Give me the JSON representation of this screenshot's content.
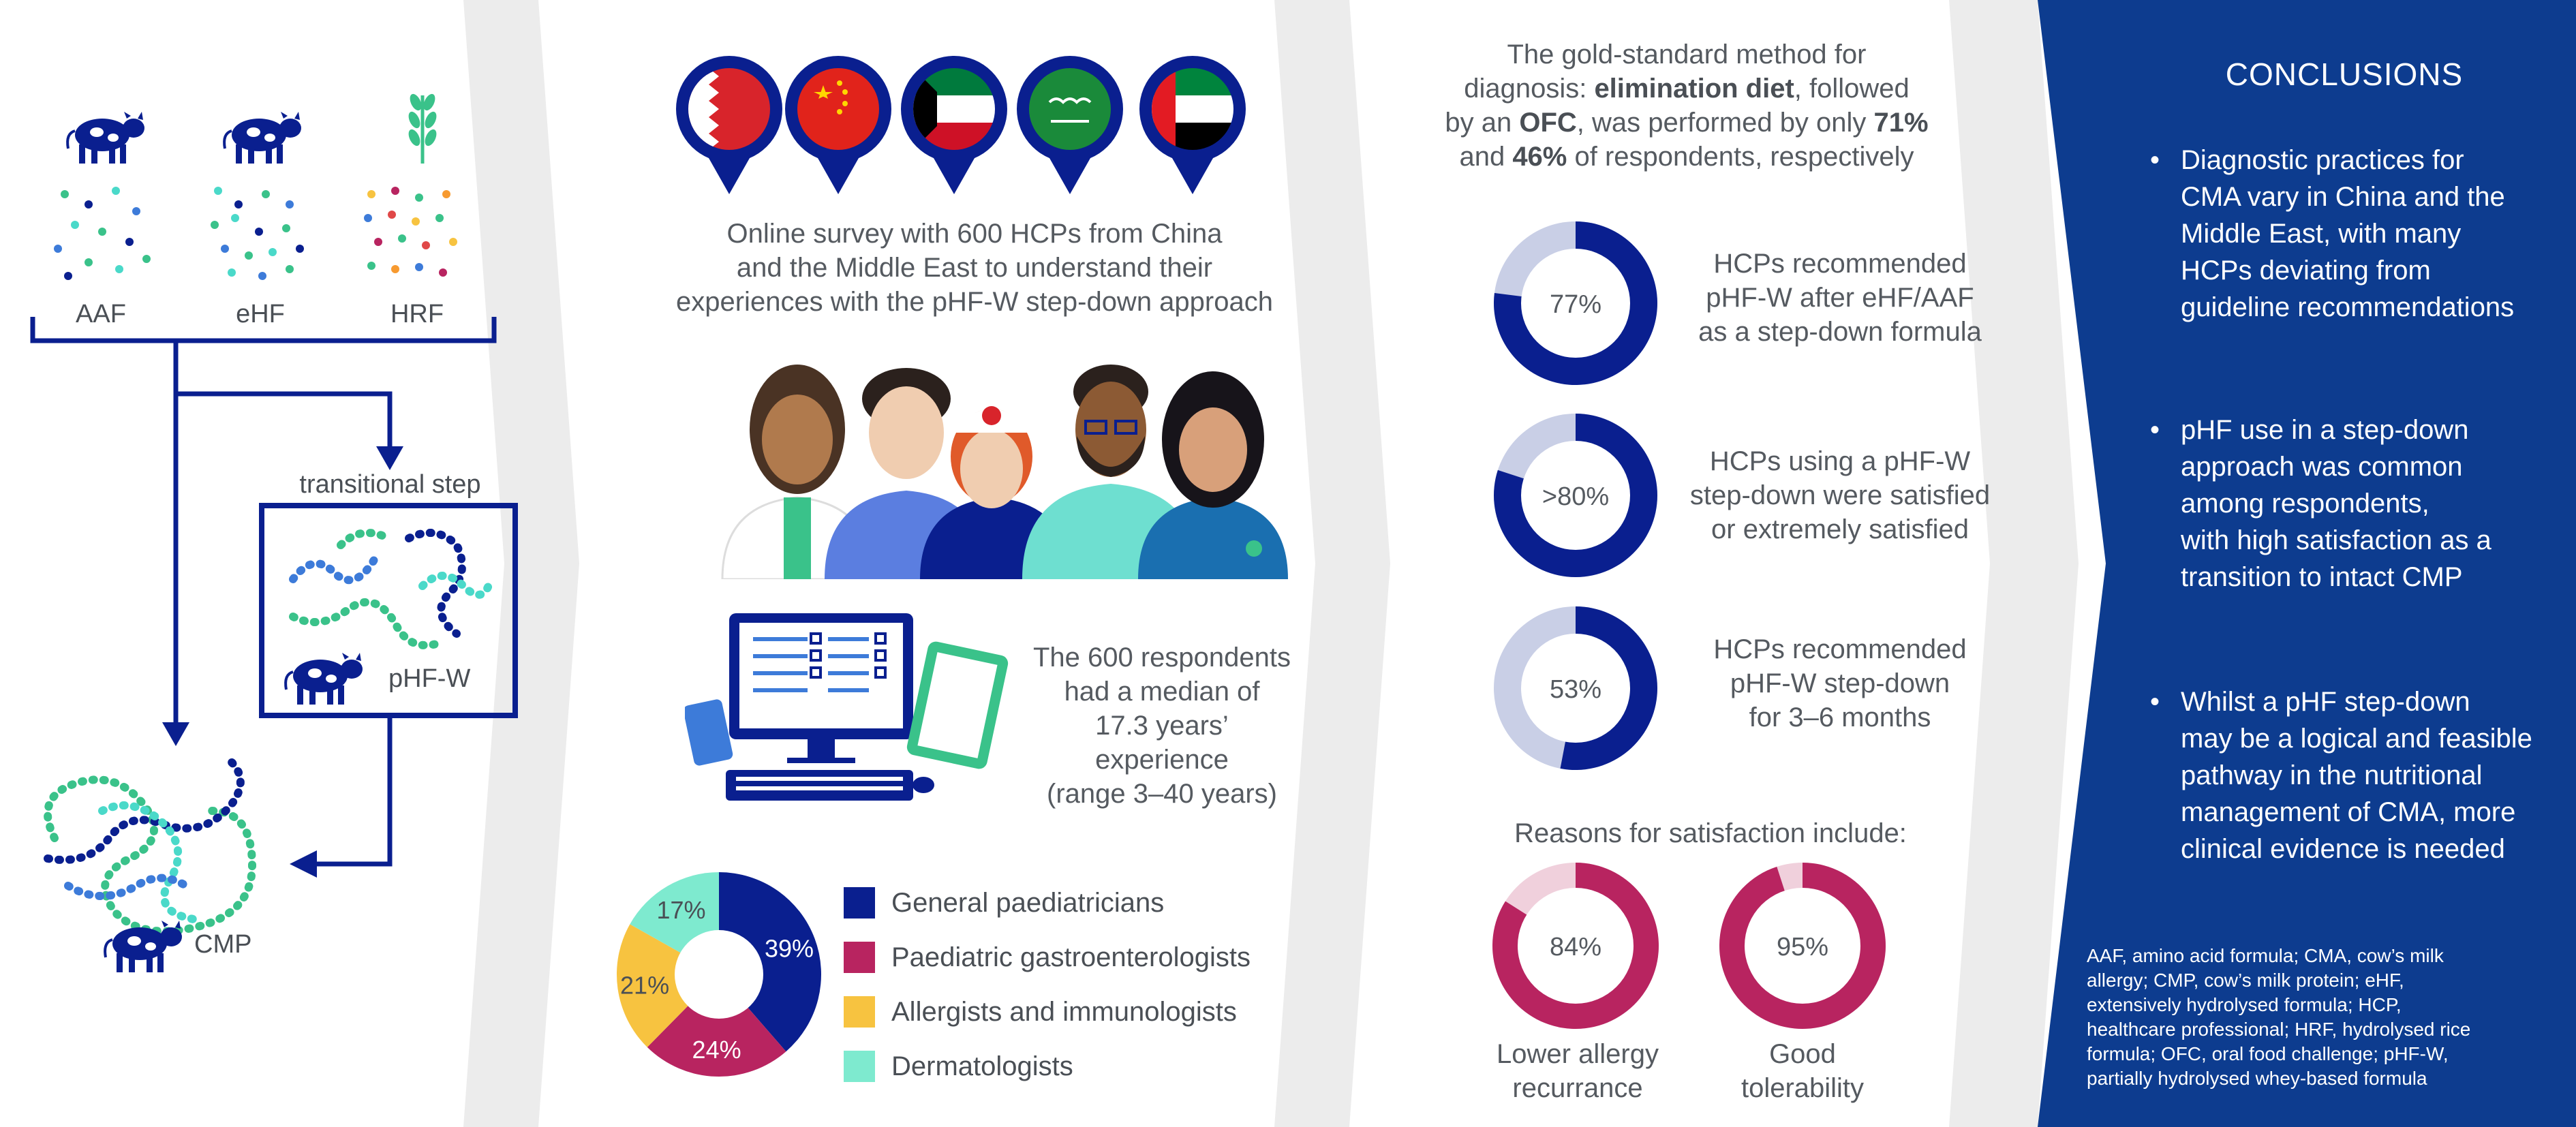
{
  "colors": {
    "navy": "#0a1f8f",
    "conclusion_bg": "#0d3c8f",
    "divider_gray": "#ececec",
    "donut_light": "#c9cfe6",
    "magenta": "#b82460",
    "pink_light": "#f0d0dc",
    "yellow": "#f7c340",
    "aqua": "#7eeacf",
    "dot_green": "#3ac28a",
    "dot_teal": "#4ad9c9",
    "dot_blue": "#3d7bd9"
  },
  "left_panel": {
    "formulas": [
      "AAF",
      "eHF",
      "HRF"
    ],
    "transitional_label": "transitional step",
    "phf_label": "pHF-W",
    "cmp_label": "CMP",
    "icons": [
      "cow-icon",
      "cow-icon",
      "wheat-icon",
      "cow-icon",
      "cow-icon"
    ]
  },
  "middle_panel": {
    "flags": [
      "bahrain-flag-icon",
      "china-flag-icon",
      "kuwait-flag-icon",
      "saudi-arabia-flag-icon",
      "uae-flag-icon"
    ],
    "survey_text": [
      "Online survey with 600 HCPs from China",
      "and the Middle East to understand their",
      "experiences with the pHF-W step-down approach"
    ],
    "experience_text": [
      "The 600 respondents",
      "had a median of",
      "17.3 years’ experience",
      "(range 3–40 years)"
    ],
    "pie": {
      "labels": [
        "39%",
        "24%",
        "21%",
        "17%"
      ],
      "legend": [
        "General paediatricians",
        "Paediatric gastroenterologists",
        "Allergists and immunologists",
        "Dermatologists"
      ]
    }
  },
  "right_panel": {
    "gold_standard_lines": [
      {
        "parts": [
          {
            "t": "The gold-standard method for",
            "b": false
          }
        ]
      },
      {
        "parts": [
          {
            "t": "diagnosis: ",
            "b": false
          },
          {
            "t": "elimination diet",
            "b": true
          },
          {
            "t": ", followed",
            "b": false
          }
        ]
      },
      {
        "parts": [
          {
            "t": "by an ",
            "b": false
          },
          {
            "t": "OFC",
            "b": true
          },
          {
            "t": ", was performed by only ",
            "b": false
          },
          {
            "t": "71%",
            "b": true
          }
        ]
      },
      {
        "parts": [
          {
            "t": "and ",
            "b": false
          },
          {
            "t": "46%",
            "b": true
          },
          {
            "t": " of respondents, respectively",
            "b": false
          }
        ]
      }
    ],
    "stats": [
      {
        "label": "77%",
        "text": [
          "HCPs recommended",
          "pHF-W after eHF/AAF",
          "as a step-down formula"
        ]
      },
      {
        "label": ">80%",
        "text": [
          "HCPs using a pHF-W",
          "step-down were satisfied",
          "or extremely satisfied"
        ]
      },
      {
        "label": "53%",
        "text": [
          "HCPs recommended",
          "pHF-W step-down",
          "for 3–6 months"
        ]
      }
    ],
    "reasons_title": "Reasons for satisfaction include:",
    "reasons": [
      {
        "label": "84%",
        "caption": [
          "Lower allergy",
          "recurrance"
        ]
      },
      {
        "label": "95%",
        "caption": [
          "Good",
          "tolerability"
        ]
      }
    ]
  },
  "conclusions": {
    "title": "CONCLUSIONS",
    "bullets": [
      [
        "Diagnostic practices for",
        "CMA vary in China and the",
        "Middle East, with many",
        "HCPs deviating from",
        "guideline recommendations"
      ],
      [
        "pHF use in a step-down",
        "approach was common",
        "among respondents,",
        "with high satisfaction as a",
        "transition to intact CMP"
      ],
      [
        "Whilst a pHF step-down",
        "may be a logical and feasible",
        "pathway in the nutritional",
        "management of CMA, more",
        "clinical evidence is needed"
      ]
    ],
    "footnote": [
      "AAF, amino acid formula; CMA, cow’s milk",
      "allergy; CMP, cow’s milk protein; eHF,",
      "extensively hydrolysed formula; HCP,",
      "healthcare professional; HRF, hydrolysed rice",
      "formula; OFC, oral food challenge; pHF-W,",
      "partially hydrolysed whey-based formula"
    ]
  },
  "chart_data": [
    {
      "type": "pie",
      "title": "",
      "categories": [
        "General paediatricians",
        "Paediatric gastroenterologists",
        "Allergists and immunologists",
        "Dermatologists"
      ],
      "values": [
        39,
        24,
        21,
        17
      ],
      "donut": true,
      "legend": "right"
    },
    {
      "type": "pie",
      "donut": true,
      "categories": [
        "HCPs recommended pHF-W after eHF/AAF as a step-down formula",
        "other"
      ],
      "values": [
        77,
        23
      ]
    },
    {
      "type": "pie",
      "donut": true,
      "categories": [
        "HCPs using a pHF-W step-down were satisfied or extremely satisfied",
        "other"
      ],
      "values": [
        80,
        20
      ]
    },
    {
      "type": "pie",
      "donut": true,
      "categories": [
        "HCPs recommended pHF-W step-down for 3–6 months",
        "other"
      ],
      "values": [
        53,
        47
      ]
    },
    {
      "type": "pie",
      "donut": true,
      "categories": [
        "Lower allergy recurrance",
        "other"
      ],
      "values": [
        84,
        16
      ]
    },
    {
      "type": "pie",
      "donut": true,
      "categories": [
        "Good tolerability",
        "other"
      ],
      "values": [
        95,
        5
      ]
    }
  ]
}
